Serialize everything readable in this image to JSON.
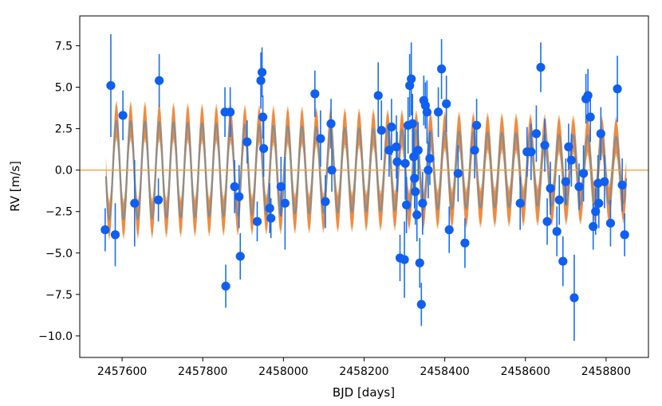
{
  "chart_data": {
    "type": "scatter",
    "xlabel": "BJD [days]",
    "ylabel": "RV [m/s]",
    "xlim": [
      2457495,
      2458905
    ],
    "ylim": [
      -11.3,
      9.3
    ],
    "x_ticks": [
      2457600,
      2457800,
      2458000,
      2458200,
      2458400,
      2458600,
      2458800
    ],
    "x_tick_labels": [
      "2457600",
      "2457800",
      "2458000",
      "2458200",
      "2458400",
      "2458600",
      "2458800"
    ],
    "y_ticks": [
      7.5,
      5.0,
      2.5,
      0.0,
      -2.5,
      -5.0,
      -7.5,
      -10.0
    ],
    "y_tick_labels": [
      "7.5",
      "5.0",
      "2.5",
      "0.0",
      "−2.5",
      "−5.0",
      "−7.5",
      "−10.0"
    ],
    "grid": false,
    "legend": "none",
    "colors": {
      "points": "#0f5ff0",
      "errorbars": "#1a70f0",
      "model_line": "#8c8c8c",
      "inner_band": "#f08a40",
      "outer_band": "#f2c08f",
      "zero_line": "#f5a040"
    },
    "model": {
      "x_start": 2457560,
      "x_end": 2458850,
      "period_days": 35.4,
      "phase_zero_x": 2457577,
      "amplitude_start": 3.0,
      "amplitude_end": 2.0,
      "inner_band_halfwidth": 1.0,
      "outer_band_halfwidth": 1.2
    },
    "zero_line_y": 0.0,
    "series": [
      {
        "points": [
          {
            "x": 2457558,
            "y": -3.6,
            "err": 1.3
          },
          {
            "x": 2457572,
            "y": 5.1,
            "err": 3.1
          },
          {
            "x": 2457583,
            "y": -3.9,
            "err": 1.9
          },
          {
            "x": 2457602,
            "y": 3.3,
            "err": 1.5
          },
          {
            "x": 2457631,
            "y": -2.0,
            "err": 2.6
          },
          {
            "x": 2457690,
            "y": -1.8,
            "err": 1.3
          },
          {
            "x": 2457692,
            "y": 5.4,
            "err": 1.6
          },
          {
            "x": 2457855,
            "y": 3.5,
            "err": 1.5
          },
          {
            "x": 2457857,
            "y": -7.0,
            "err": 1.3
          },
          {
            "x": 2457868,
            "y": 3.5,
            "err": 1.5
          },
          {
            "x": 2457879,
            "y": -1.0,
            "err": 1.6
          },
          {
            "x": 2457890,
            "y": -1.6,
            "err": 1.9
          },
          {
            "x": 2457893,
            "y": -5.2,
            "err": 1.4
          },
          {
            "x": 2457910,
            "y": 1.7,
            "err": 1.3
          },
          {
            "x": 2457935,
            "y": -3.1,
            "err": 1.2
          },
          {
            "x": 2457944,
            "y": 5.4,
            "err": 1.7
          },
          {
            "x": 2457947,
            "y": 5.9,
            "err": 1.5
          },
          {
            "x": 2457949,
            "y": 3.2,
            "err": 1.3
          },
          {
            "x": 2457951,
            "y": 1.3,
            "err": 1.7
          },
          {
            "x": 2457966,
            "y": -2.3,
            "err": 1.5
          },
          {
            "x": 2457969,
            "y": -2.9,
            "err": 1.2
          },
          {
            "x": 2457994,
            "y": -1.0,
            "err": 1.8
          },
          {
            "x": 2458004,
            "y": -2.0,
            "err": 2.8
          },
          {
            "x": 2458078,
            "y": 4.6,
            "err": 1.4
          },
          {
            "x": 2458092,
            "y": 1.9,
            "err": 1.7
          },
          {
            "x": 2458104,
            "y": -1.9,
            "err": 1.6
          },
          {
            "x": 2458118,
            "y": 2.8,
            "err": 1.5
          },
          {
            "x": 2458120,
            "y": 0.0,
            "err": 1.3
          },
          {
            "x": 2458235,
            "y": 4.5,
            "err": 2.0
          },
          {
            "x": 2458243,
            "y": 2.4,
            "err": 1.8
          },
          {
            "x": 2458262,
            "y": 1.2,
            "err": 1.6
          },
          {
            "x": 2458268,
            "y": 2.6,
            "err": 1.7
          },
          {
            "x": 2458280,
            "y": 1.4,
            "err": 1.9
          },
          {
            "x": 2458282,
            "y": 0.5,
            "err": 1.8
          },
          {
            "x": 2458289,
            "y": -5.3,
            "err": 1.4
          },
          {
            "x": 2458300,
            "y": -5.4,
            "err": 2.3
          },
          {
            "x": 2458302,
            "y": 0.4,
            "err": 2.2
          },
          {
            "x": 2458305,
            "y": -2.1,
            "err": 1.7
          },
          {
            "x": 2458309,
            "y": 2.7,
            "err": 1.7
          },
          {
            "x": 2458313,
            "y": 5.1,
            "err": 1.9
          },
          {
            "x": 2458317,
            "y": 5.5,
            "err": 2.2
          },
          {
            "x": 2458320,
            "y": 2.8,
            "err": 1.8
          },
          {
            "x": 2458323,
            "y": 0.8,
            "err": 2.1
          },
          {
            "x": 2458325,
            "y": -0.5,
            "err": 1.8
          },
          {
            "x": 2458327,
            "y": -1.3,
            "err": 2.0
          },
          {
            "x": 2458331,
            "y": -2.7,
            "err": 1.6
          },
          {
            "x": 2458334,
            "y": 1.2,
            "err": 1.7
          },
          {
            "x": 2458338,
            "y": -5.6,
            "err": 1.5
          },
          {
            "x": 2458342,
            "y": -8.1,
            "err": 1.3
          },
          {
            "x": 2458345,
            "y": -2.0,
            "err": 1.9
          },
          {
            "x": 2458348,
            "y": 4.2,
            "err": 1.5
          },
          {
            "x": 2458352,
            "y": 3.9,
            "err": 1.4
          },
          {
            "x": 2458356,
            "y": 3.5,
            "err": 1.9
          },
          {
            "x": 2458359,
            "y": 0.0,
            "err": 1.7
          },
          {
            "x": 2458363,
            "y": 0.7,
            "err": 1.6
          },
          {
            "x": 2458384,
            "y": 3.5,
            "err": 1.5
          },
          {
            "x": 2458392,
            "y": 6.1,
            "err": 1.8
          },
          {
            "x": 2458404,
            "y": 4.0,
            "err": 1.7
          },
          {
            "x": 2458411,
            "y": -3.6,
            "err": 1.4
          },
          {
            "x": 2458433,
            "y": -0.2,
            "err": 1.7
          },
          {
            "x": 2458450,
            "y": -4.4,
            "err": 1.5
          },
          {
            "x": 2458474,
            "y": 1.2,
            "err": 1.7
          },
          {
            "x": 2458479,
            "y": 2.7,
            "err": 1.6
          },
          {
            "x": 2458587,
            "y": -2.0,
            "err": 1.6
          },
          {
            "x": 2458604,
            "y": 1.1,
            "err": 1.5
          },
          {
            "x": 2458614,
            "y": 1.1,
            "err": 1.7
          },
          {
            "x": 2458627,
            "y": 2.2,
            "err": 1.7
          },
          {
            "x": 2458638,
            "y": 6.2,
            "err": 1.5
          },
          {
            "x": 2458648,
            "y": 1.5,
            "err": 1.6
          },
          {
            "x": 2458654,
            "y": -3.1,
            "err": 1.4
          },
          {
            "x": 2458662,
            "y": -1.1,
            "err": 1.6
          },
          {
            "x": 2458678,
            "y": -3.7,
            "err": 1.5
          },
          {
            "x": 2458684,
            "y": -1.8,
            "err": 1.5
          },
          {
            "x": 2458693,
            "y": -5.5,
            "err": 1.5
          },
          {
            "x": 2458700,
            "y": -0.7,
            "err": 1.4
          },
          {
            "x": 2458707,
            "y": 1.4,
            "err": 1.4
          },
          {
            "x": 2458714,
            "y": 0.6,
            "err": 1.6
          },
          {
            "x": 2458721,
            "y": -7.7,
            "err": 2.6
          },
          {
            "x": 2458733,
            "y": -1.0,
            "err": 1.4
          },
          {
            "x": 2458744,
            "y": -0.2,
            "err": 1.7
          },
          {
            "x": 2458750,
            "y": 4.3,
            "err": 1.5
          },
          {
            "x": 2458755,
            "y": 4.5,
            "err": 1.6
          },
          {
            "x": 2458761,
            "y": 3.2,
            "err": 1.5
          },
          {
            "x": 2458768,
            "y": -3.4,
            "err": 1.4
          },
          {
            "x": 2458774,
            "y": -2.5,
            "err": 1.4
          },
          {
            "x": 2458780,
            "y": -0.8,
            "err": 1.7
          },
          {
            "x": 2458782,
            "y": -2.0,
            "err": 1.5
          },
          {
            "x": 2458787,
            "y": 2.2,
            "err": 1.6
          },
          {
            "x": 2458796,
            "y": -0.7,
            "err": 1.6
          },
          {
            "x": 2458811,
            "y": -3.2,
            "err": 1.4
          },
          {
            "x": 2458828,
            "y": 4.9,
            "err": 2.0
          },
          {
            "x": 2458840,
            "y": -0.9,
            "err": 1.6
          },
          {
            "x": 2458846,
            "y": -3.9,
            "err": 1.3
          }
        ]
      }
    ]
  }
}
